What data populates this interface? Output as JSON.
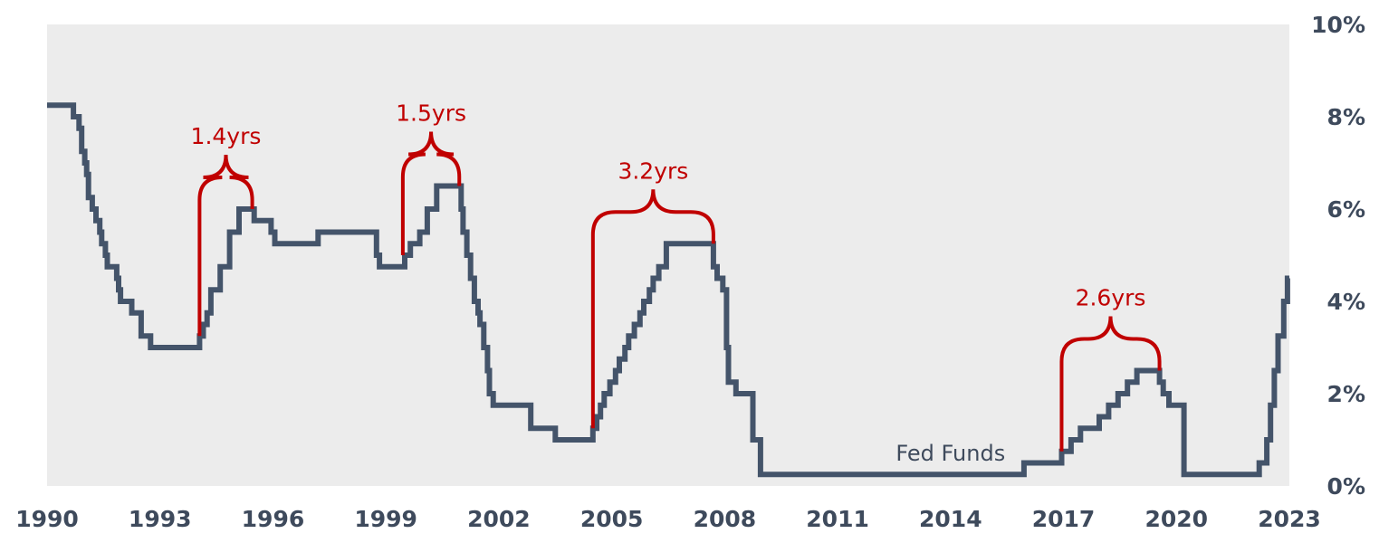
{
  "chart_data": {
    "type": "line",
    "title": "",
    "xlabel": "",
    "ylabel": "",
    "x_ticks": [
      "1990",
      "1993",
      "1996",
      "1999",
      "2002",
      "2005",
      "2008",
      "2011",
      "2014",
      "2017",
      "2020",
      "2023"
    ],
    "y_ticks": [
      "0%",
      "2%",
      "4%",
      "6%",
      "8%",
      "10%"
    ],
    "xlim": [
      1990,
      2023
    ],
    "ylim": [
      0,
      10
    ],
    "y_axis_side": "right",
    "grid": false,
    "background_color": "#ececec",
    "series": [
      {
        "name": "Fed Funds",
        "color": "#44546a",
        "step": true,
        "x": [
          1990.0,
          1990.7,
          1990.85,
          1990.92,
          1991.0,
          1991.05,
          1991.1,
          1991.2,
          1991.3,
          1991.4,
          1991.45,
          1991.55,
          1991.6,
          1991.85,
          1991.9,
          1991.95,
          1992.0,
          1992.25,
          1992.5,
          1992.75,
          1993.0,
          1994.05,
          1994.15,
          1994.25,
          1994.35,
          1994.6,
          1994.85,
          1995.1,
          1995.5,
          1995.95,
          1996.05,
          1997.2,
          1998.75,
          1998.83,
          1998.9,
          1999.5,
          1999.65,
          1999.9,
          2000.1,
          2000.35,
          2000.5,
          2001.0,
          2001.05,
          2001.15,
          2001.25,
          2001.35,
          2001.45,
          2001.5,
          2001.6,
          2001.7,
          2001.75,
          2001.85,
          2001.9,
          2002.85,
          2003.5,
          2004.5,
          2004.6,
          2004.7,
          2004.8,
          2004.95,
          2005.1,
          2005.2,
          2005.35,
          2005.45,
          2005.6,
          2005.75,
          2005.85,
          2006.0,
          2006.1,
          2006.25,
          2006.45,
          2007.7,
          2007.8,
          2007.95,
          2008.05,
          2008.1,
          2008.3,
          2008.75,
          2008.95,
          2015.95,
          2016.95,
          2017.2,
          2017.45,
          2017.95,
          2018.2,
          2018.45,
          2018.7,
          2018.95,
          2019.55,
          2019.65,
          2019.8,
          2020.2,
          2022.2,
          2022.4,
          2022.5,
          2022.6,
          2022.7,
          2022.85,
          2022.95
        ],
        "values": [
          8.25,
          8.0,
          7.75,
          7.25,
          7.0,
          6.75,
          6.25,
          6.0,
          5.75,
          5.5,
          5.25,
          5.0,
          4.75,
          4.5,
          4.25,
          4.0,
          4.0,
          3.75,
          3.25,
          3.0,
          3.0,
          3.25,
          3.5,
          3.75,
          4.25,
          4.75,
          5.5,
          6.0,
          5.75,
          5.5,
          5.25,
          5.5,
          5.0,
          4.75,
          4.75,
          5.0,
          5.25,
          5.5,
          6.0,
          6.5,
          6.5,
          6.0,
          5.5,
          5.0,
          4.5,
          4.0,
          3.75,
          3.5,
          3.0,
          2.5,
          2.0,
          1.75,
          1.75,
          1.25,
          1.0,
          1.25,
          1.5,
          1.75,
          2.0,
          2.25,
          2.5,
          2.75,
          3.0,
          3.25,
          3.5,
          3.75,
          4.0,
          4.25,
          4.5,
          4.75,
          5.25,
          4.75,
          4.5,
          4.25,
          3.0,
          2.25,
          2.0,
          1.0,
          0.25,
          0.5,
          0.75,
          1.0,
          1.25,
          1.5,
          1.75,
          2.0,
          2.25,
          2.5,
          2.25,
          2.0,
          1.75,
          0.25,
          0.5,
          1.0,
          1.75,
          2.5,
          3.25,
          4.0,
          4.5
        ]
      }
    ],
    "series_label": {
      "text": "Fed Funds",
      "x": 2014.0,
      "y": 0.55
    },
    "annotations": [
      {
        "text": "1.4yrs",
        "x_start": 1994.05,
        "x_end": 1995.45,
        "y_start": 3.25,
        "y_end": 6.0,
        "color": "#c00000"
      },
      {
        "text": "1.5yrs",
        "x_start": 1999.45,
        "x_end": 2000.95,
        "y_start": 5.0,
        "y_end": 6.5,
        "color": "#c00000"
      },
      {
        "text": "3.2yrs",
        "x_start": 2004.5,
        "x_end": 2007.7,
        "y_start": 1.25,
        "y_end": 5.25,
        "color": "#c00000"
      },
      {
        "text": "2.6yrs",
        "x_start": 2016.95,
        "x_end": 2019.55,
        "y_start": 0.75,
        "y_end": 2.5,
        "color": "#c00000"
      }
    ]
  }
}
